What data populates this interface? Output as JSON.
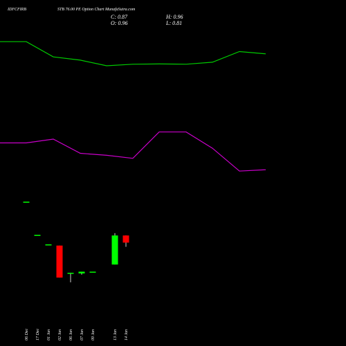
{
  "header": {
    "symbol": "IDFCFIRB",
    "subtitle": "STB 76.00 PE Option  Chart MunafaSutra.com",
    "close": "C: 0.87",
    "open": "O: 0.96",
    "high": "H: 0.96",
    "low": "L: 0.81"
  },
  "colors": {
    "background": "#000000",
    "up": "#00ff00",
    "down": "#ff0000",
    "line_green": "#00cc00",
    "line_purple": "#cc00cc",
    "text": "#ffffff"
  },
  "chart_data": [
    {
      "type": "line",
      "x": [
        "06 Dec",
        "17 Dec",
        "01 Jan",
        "02 Jan",
        "06 Jan",
        "07 Jan",
        "09 Jan",
        "13 Jan",
        "14 Jan",
        "",
        ""
      ],
      "series": [
        {
          "color": "#00cc00",
          "values": [
            2.45,
            2.45,
            1.85,
            1.72,
            1.5,
            1.56,
            1.57,
            1.56,
            1.64,
            2.06,
            1.97
          ]
        },
        {
          "color": "#cc00cc",
          "values": [
            -1.54,
            -1.54,
            -1.39,
            -1.95,
            -2.03,
            -2.15,
            -1.11,
            -1.11,
            -1.75,
            -2.65,
            -2.6
          ]
        }
      ],
      "ylim": [
        -3.0,
        3.0
      ],
      "grid": false
    },
    {
      "type": "candlestick",
      "categories": [
        "06 Dec",
        "17 Dec",
        "01 Jan",
        "02 Jan",
        "06 Jan",
        "07 Jan",
        "09 Jan",
        "13 Jan",
        "14 Jan"
      ],
      "open": [
        1.6,
        1.04,
        0.88,
        0.86,
        0.39,
        0.39,
        0.42,
        0.54,
        1.03
      ],
      "high": [
        1.6,
        1.04,
        0.88,
        0.86,
        0.4,
        0.42,
        0.42,
        1.07,
        1.03
      ],
      "low": [
        1.6,
        1.04,
        0.88,
        0.32,
        0.24,
        0.37,
        0.42,
        0.54,
        0.84
      ],
      "close": [
        1.6,
        1.04,
        0.88,
        0.32,
        0.4,
        0.42,
        0.42,
        1.03,
        0.91
      ],
      "ylim": [
        0.1,
        2.2
      ],
      "grid": false
    }
  ]
}
